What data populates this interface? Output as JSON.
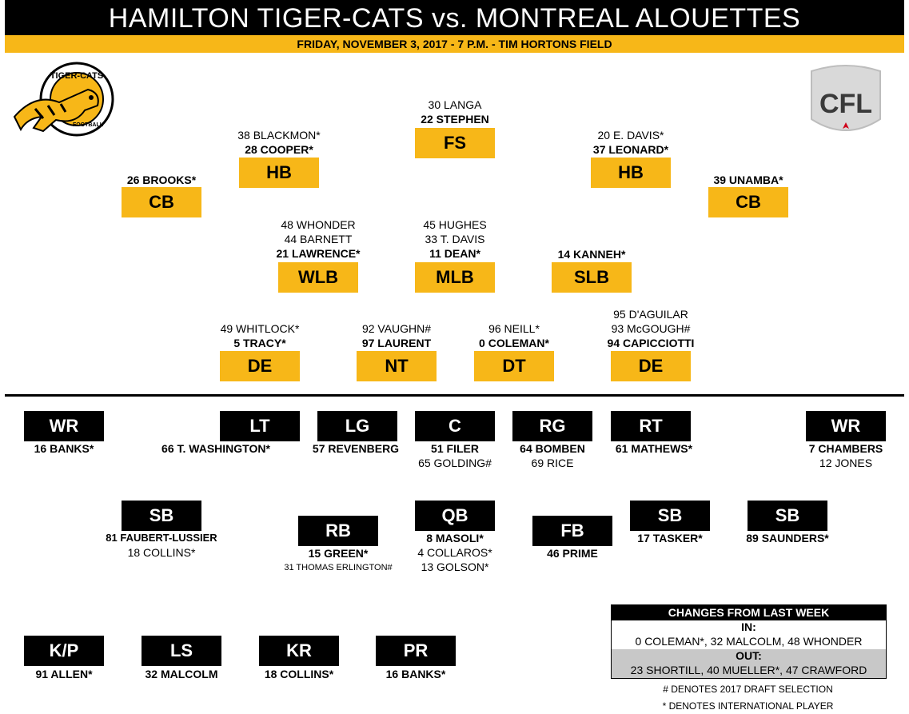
{
  "header": {
    "title": "HAMILTON TIGER-CATS vs. MONTREAL ALOUETTES",
    "subtitle": "FRIDAY, NOVEMBER 3, 2017 - 7 P.M. - TIM HORTONS FIELD"
  },
  "logos": {
    "team_text": "TIGER-CATS",
    "team_sub": "FOOTBALL",
    "league_text": "CFL"
  },
  "colors": {
    "gold": "#f7b718",
    "black": "#000000",
    "grey": "#c8c8c8"
  },
  "defence": {
    "fs": {
      "label": "FS",
      "players": [
        "30 LANGA",
        "22 STEPHEN"
      ]
    },
    "hb_left": {
      "label": "HB",
      "players": [
        "38 BLACKMON*",
        "28 COOPER*"
      ]
    },
    "hb_right": {
      "label": "HB",
      "players": [
        "20 E. DAVIS*",
        "37 LEONARD*"
      ]
    },
    "cb_left": {
      "label": "CB",
      "players": [
        "26 BROOKS*"
      ]
    },
    "cb_right": {
      "label": "CB",
      "players": [
        "39 UNAMBA*"
      ]
    },
    "wlb": {
      "label": "WLB",
      "players": [
        "48 WHONDER",
        "44 BARNETT",
        "21 LAWRENCE*"
      ]
    },
    "mlb": {
      "label": "MLB",
      "players": [
        "45 HUGHES",
        "33 T. DAVIS",
        "11 DEAN*"
      ]
    },
    "slb": {
      "label": "SLB",
      "players": [
        "14 KANNEH*"
      ]
    },
    "de_left": {
      "label": "DE",
      "players": [
        "49 WHITLOCK*",
        "5 TRACY*"
      ]
    },
    "nt": {
      "label": "NT",
      "players": [
        "92 VAUGHN#",
        "97 LAURENT"
      ]
    },
    "dt": {
      "label": "DT",
      "players": [
        "96 NEILL*",
        "0 COLEMAN*"
      ]
    },
    "de_right": {
      "label": "DE",
      "players": [
        "95 D'AGUILAR",
        "93 McGOUGH#",
        "94 CAPICCIOTTI"
      ]
    }
  },
  "offence": {
    "wr_left": {
      "label": "WR",
      "players": [
        "16 BANKS*"
      ]
    },
    "lt": {
      "label": "LT",
      "players": [
        "66 T. WASHINGTON*"
      ]
    },
    "lg": {
      "label": "LG",
      "players": [
        "57 REVENBERG"
      ]
    },
    "c": {
      "label": "C",
      "players": [
        "51 FILER",
        "65 GOLDING#"
      ]
    },
    "rg": {
      "label": "RG",
      "players": [
        "64 BOMBEN",
        "69 RICE"
      ]
    },
    "rt": {
      "label": "RT",
      "players": [
        "61 MATHEWS*"
      ]
    },
    "wr_right": {
      "label": "WR",
      "players": [
        "7 CHAMBERS",
        "12 JONES"
      ]
    },
    "sb_left": {
      "label": "SB",
      "players": [
        "81 FAUBERT-LUSSIER",
        "18 COLLINS*"
      ]
    },
    "rb": {
      "label": "RB",
      "players": [
        "15 GREEN*",
        "31 THOMAS ERLINGTON#"
      ]
    },
    "qb": {
      "label": "QB",
      "players": [
        "8 MASOLI*",
        "4 COLLAROS*",
        "13 GOLSON*"
      ]
    },
    "fb": {
      "label": "FB",
      "players": [
        "46 PRIME"
      ]
    },
    "sb_mid": {
      "label": "SB",
      "players": [
        "17 TASKER*"
      ]
    },
    "sb_right": {
      "label": "SB",
      "players": [
        "89 SAUNDERS*"
      ]
    }
  },
  "special": {
    "kp": {
      "label": "K/P",
      "players": [
        "91 ALLEN*"
      ]
    },
    "ls": {
      "label": "LS",
      "players": [
        "32 MALCOLM"
      ]
    },
    "kr": {
      "label": "KR",
      "players": [
        "18 COLLINS*"
      ]
    },
    "pr": {
      "label": "PR",
      "players": [
        "16 BANKS*"
      ]
    }
  },
  "changes": {
    "title": "CHANGES FROM LAST WEEK",
    "in_label": "IN:",
    "in_value": "0 COLEMAN*, 32 MALCOLM, 48 WHONDER",
    "out_label": "OUT:",
    "out_value": "23 SHORTILL, 40 MUELLER*, 47 CRAWFORD"
  },
  "notes": {
    "draft": "# DENOTES 2017 DRAFT SELECTION",
    "international": "* DENOTES INTERNATIONAL PLAYER"
  }
}
